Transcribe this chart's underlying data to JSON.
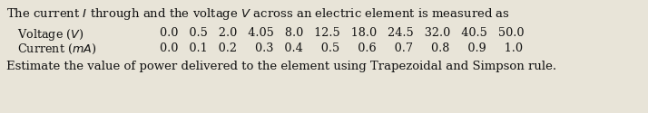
{
  "line1": "The current $I$ through and the voltage $V$ across an electric element is measured as",
  "voltage_label": "   Voltage ($V$)",
  "voltage_values": "  0.0   0.5   2.0   4.05   8.0   12.5   18.0   24.5   32.0   40.5   50.0",
  "current_label": "   Current ($m$$A$)",
  "current_values": "  0.0   0.1   0.2     0.3   0.4     0.5     0.6     0.7     0.8     0.9     1.0",
  "line4": "Estimate the value of power delivered to the element using Trapezoidal and Simpson rule.",
  "bg_color": "#e8e4d8",
  "text_color": "#111111",
  "font_size": 9.5,
  "font_size_small": 9.2
}
